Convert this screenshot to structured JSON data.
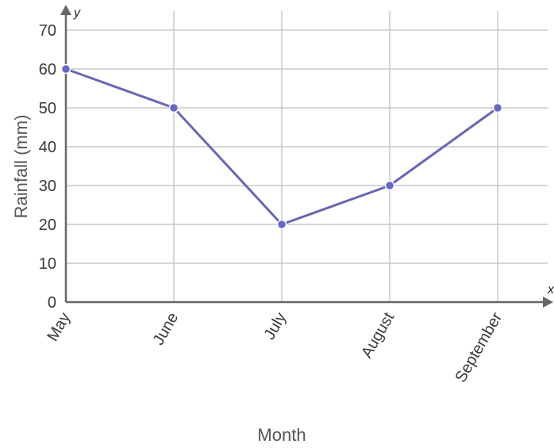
{
  "chart_data": {
    "type": "line",
    "categories": [
      "May",
      "June",
      "July",
      "August",
      "September"
    ],
    "series": [
      {
        "values": [
          60,
          50,
          20,
          30,
          50
        ]
      }
    ],
    "xlabel": "Month",
    "ylabel": "Rainfall (mm)",
    "x_axis_letter": "x",
    "y_axis_letter": "y",
    "y_ticks": [
      0,
      10,
      20,
      30,
      40,
      50,
      60,
      70
    ],
    "ylim": [
      0,
      70
    ],
    "grid": true,
    "line_color": "#6666bb",
    "marker_color": "#6666cc",
    "grid_color": "#c8c8c8",
    "axis_color": "#666666"
  }
}
